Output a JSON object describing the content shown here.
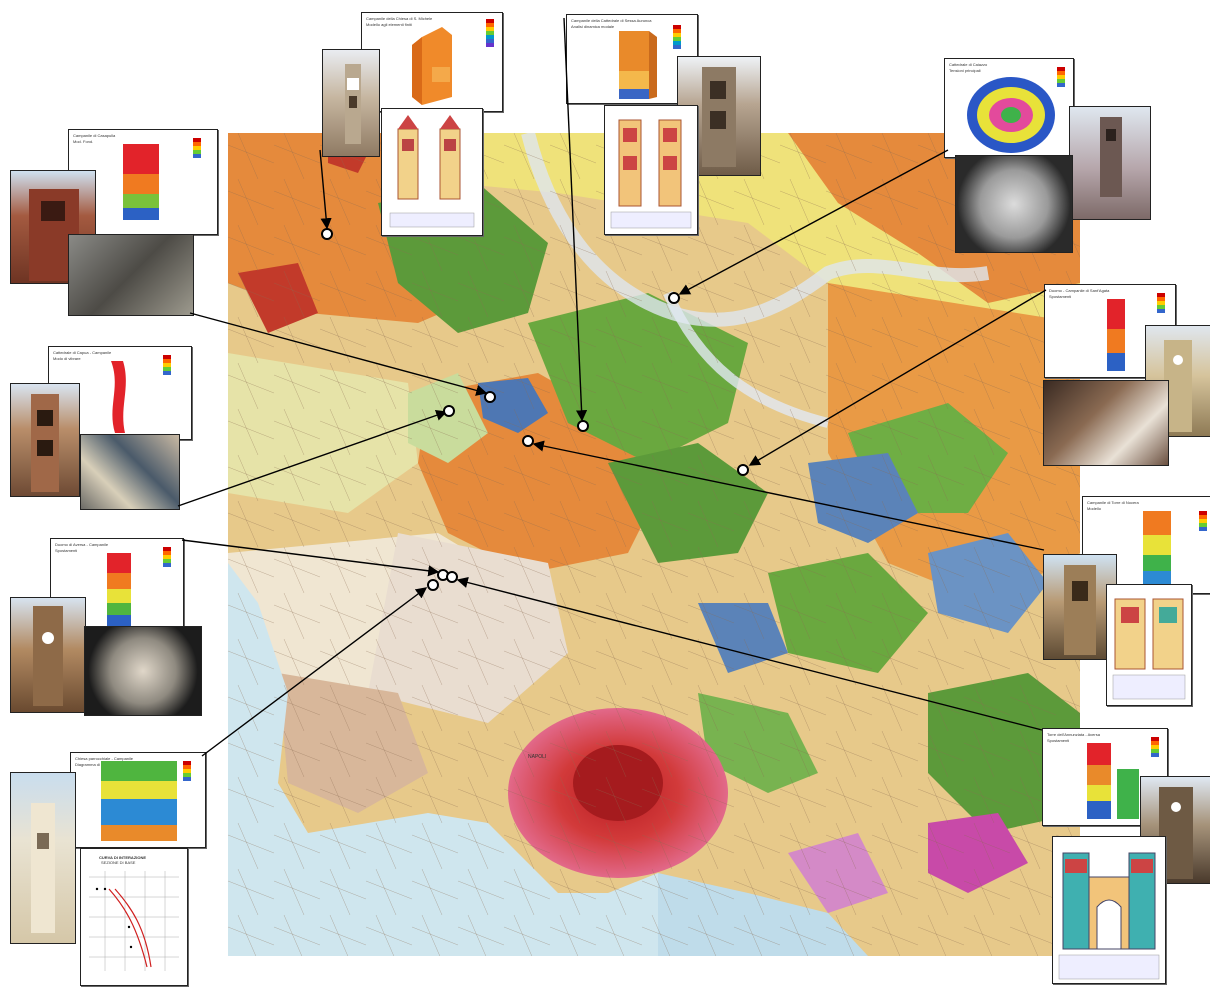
{
  "map": {
    "place_label": "NAPOLI",
    "colors": {
      "orange": "#e58a3c",
      "green": "#5c9a3a",
      "yellow": "#efe27a",
      "blue": "#5b83b8",
      "pink": "#d9557a",
      "red": "#c8322e",
      "sea": "#cfe6ee",
      "plain": "#e9ddd0"
    }
  },
  "sites": [
    {
      "id": "caiazzo",
      "icon": "circle-marker-icon"
    },
    {
      "id": "sessa",
      "icon": "circle-marker-icon"
    },
    {
      "id": "capua",
      "icon": "circle-marker-icon"
    },
    {
      "id": "marcianise",
      "icon": "circle-marker-icon"
    },
    {
      "id": "caserta",
      "icon": "circle-marker-icon"
    },
    {
      "id": "santagata",
      "icon": "circle-marker-icon"
    },
    {
      "id": "maddaloni",
      "icon": "circle-marker-icon"
    },
    {
      "id": "aversa",
      "icon": "circle-marker-icon"
    }
  ],
  "cards": {
    "card_top_left": {
      "title": "Campanile della Chiesa di S. Michele",
      "sub": "Modello agli elementi finiti"
    },
    "card_top_center": {
      "title": "Campanile della Cattedrale di Sessa Aurunca",
      "sub": "Analisi dinamica modale"
    },
    "card_top_right": {
      "title": "Cattedrale di Caiazzo",
      "sub": "Tensioni principali"
    },
    "card_left_1": {
      "title": "Campanile di Casapulla",
      "sub": "Mod. Fond."
    },
    "card_left_2": {
      "title": "Cattedrale di Capua - Campanile",
      "sub": "Modo di vibrare"
    },
    "card_left_3": {
      "title": "Duomo di Aversa - Campanile",
      "sub": "Spostamenti"
    },
    "card_left_4": {
      "title": "Chiesa parrocchiale - Campanile",
      "sub": "Diagramma di interazione"
    },
    "card_right_1": {
      "title": "Duomo - Campanile di Sant'Agata",
      "sub": "Spostamenti"
    },
    "card_right_2": {
      "title": "Campanile di Torre di Nocera",
      "sub": "Modello"
    },
    "card_right_3": {
      "title": "Torre dell'Annunziata - Aversa",
      "sub": "Spostamenti"
    }
  },
  "chart_box": {
    "title": "CURVA DI INTERAZIONE",
    "subtitle": "SEZIONE DI BASE"
  }
}
